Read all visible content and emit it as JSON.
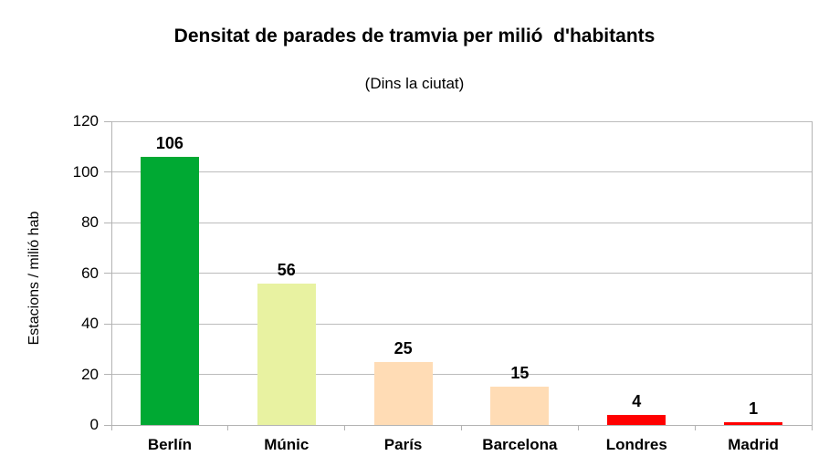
{
  "chart_data": {
    "type": "bar",
    "title": "Densitat de parades de tramvia per milió  d'habitants",
    "subtitle": "(Dins la ciutat)",
    "xlabel": "",
    "ylabel": "Estacions / milió hab",
    "categories": [
      "Berlín",
      "Múnic",
      "París",
      "Barcelona",
      "Londres",
      "Madrid"
    ],
    "values": [
      106,
      56,
      25,
      15,
      4,
      1
    ],
    "bar_colors": [
      "#00a933",
      "#e8f2a1",
      "#ffdcb5",
      "#ffdcb5",
      "#ff0000",
      "#ff0000"
    ],
    "ylim": [
      0,
      120
    ],
    "yticks": [
      0,
      20,
      40,
      60,
      80,
      100,
      120
    ],
    "grid": true,
    "legend": "none",
    "value_labels": true,
    "colors": {
      "axis": "#b3b3b3",
      "grid": "#bcbcbc",
      "text": "#000000",
      "background": "#ffffff"
    }
  }
}
